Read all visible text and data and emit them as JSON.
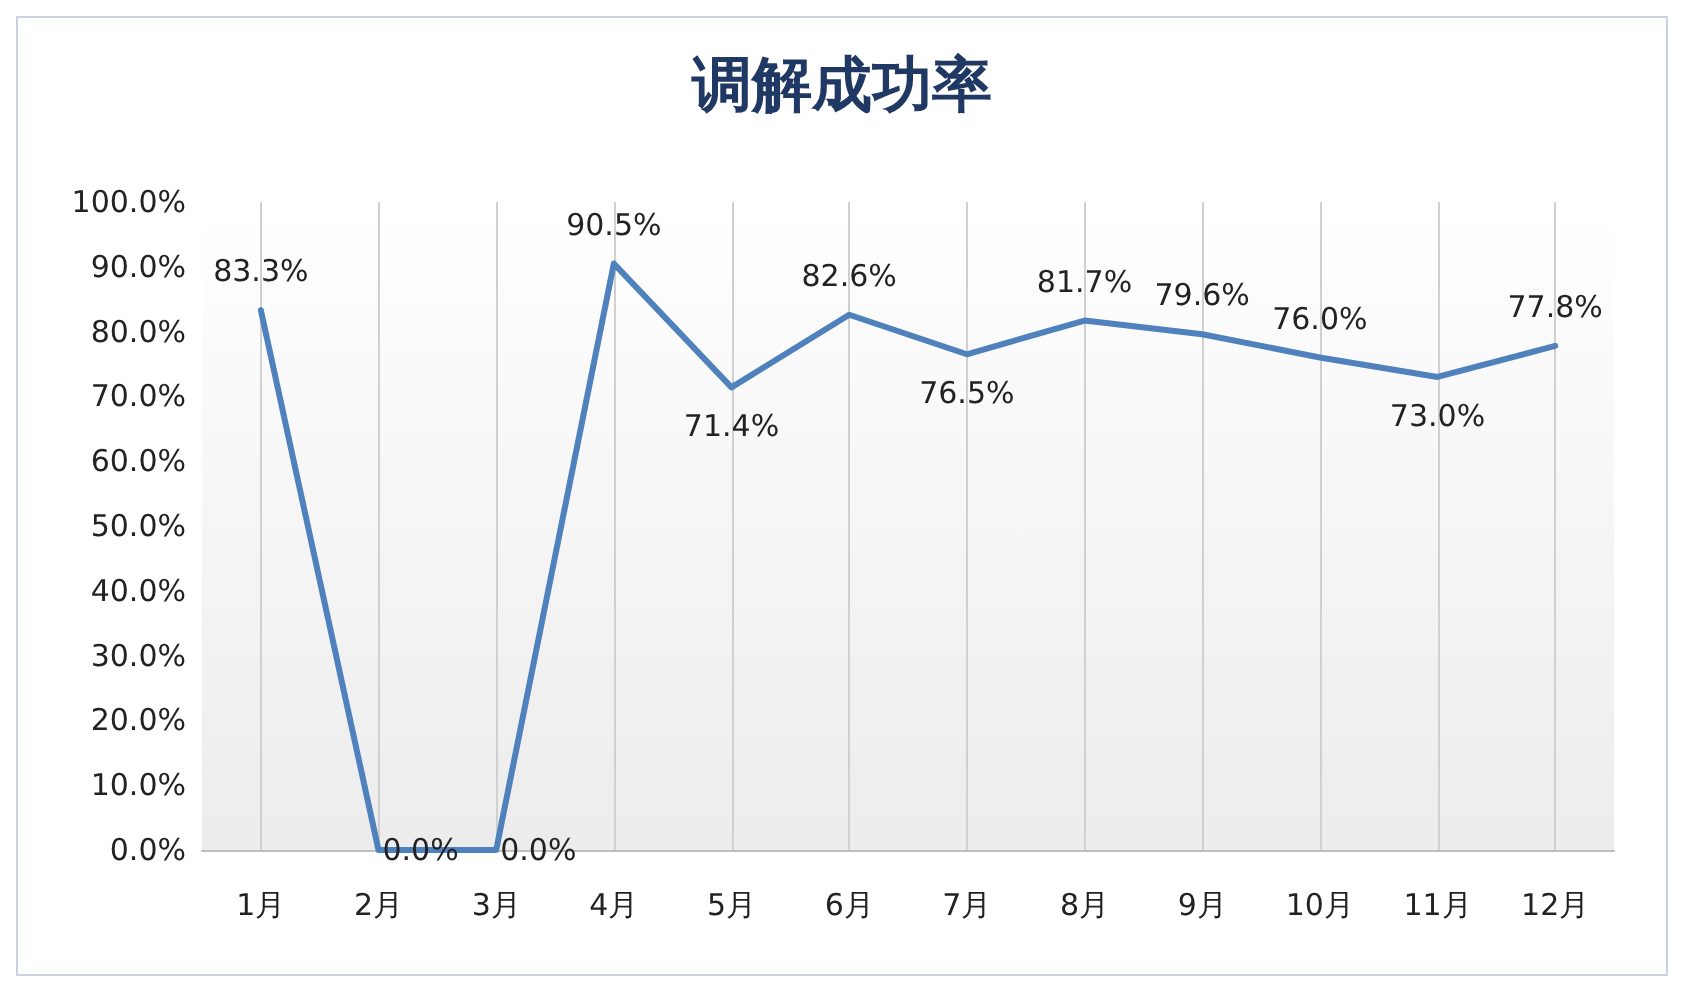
{
  "chart_data": {
    "type": "line",
    "title": "调解成功率",
    "categories": [
      "1月",
      "2月",
      "3月",
      "4月",
      "5月",
      "6月",
      "7月",
      "8月",
      "9月",
      "10月",
      "11月",
      "12月"
    ],
    "series": [
      {
        "color": "#4f81bd",
        "values": [
          83.3,
          0.0,
          0.0,
          90.5,
          71.4,
          82.6,
          76.5,
          81.7,
          79.6,
          76.0,
          73.0,
          77.8
        ],
        "value_labels": [
          "83.3%",
          "0.0%",
          "0.0%",
          "90.5%",
          "71.4%",
          "82.6%",
          "76.5%",
          "81.7%",
          "79.6%",
          "76.0%",
          "73.0%",
          "77.8%"
        ]
      }
    ],
    "ylim": [
      0,
      100
    ],
    "yticks": [
      {
        "value": 0,
        "label": "0.0%"
      },
      {
        "value": 10,
        "label": "10.0%"
      },
      {
        "value": 20,
        "label": "20.0%"
      },
      {
        "value": 30,
        "label": "30.0%"
      },
      {
        "value": 40,
        "label": "40.0%"
      },
      {
        "value": 50,
        "label": "50.0%"
      },
      {
        "value": 60,
        "label": "60.0%"
      },
      {
        "value": 70,
        "label": "70.0%"
      },
      {
        "value": 80,
        "label": "80.0%"
      },
      {
        "value": 90,
        "label": "90.0%"
      },
      {
        "value": 100,
        "label": "100.0%"
      }
    ],
    "grid": "x",
    "marker": "none",
    "line_style": "solid"
  }
}
